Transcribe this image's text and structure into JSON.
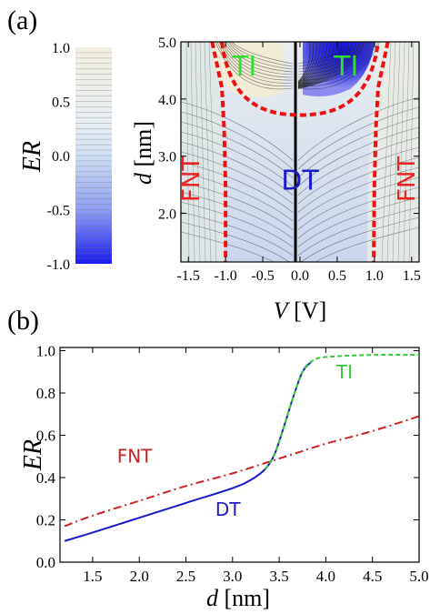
{
  "chart_data": [
    {
      "panel": "(a)",
      "type": "heatmap",
      "colorbar": {
        "label": "ER",
        "ticks": [
          "1.0",
          "0.5",
          "0.0",
          "-0.5",
          "-1.0"
        ],
        "range": [
          -1.0,
          1.0
        ],
        "colors": {
          "high": "#f3efdf",
          "mid": "#dfecf2",
          "low": "#2020ee"
        }
      },
      "xlabel": "V [V]",
      "ylabel": "d [nm]",
      "x_ticks": [
        "-1.5",
        "-1.0",
        "-0.5",
        "0.0",
        "0.5",
        "1.0",
        "1.5"
      ],
      "y_ticks": [
        "2.0",
        "3.0",
        "4.0",
        "5.0"
      ],
      "xlim": [
        -1.6,
        1.6
      ],
      "ylim": [
        1.15,
        5.0
      ],
      "regions": [
        {
          "label": "TI",
          "x": -0.75,
          "y": 4.55,
          "color": "#33dd33"
        },
        {
          "label": "TI",
          "x": 0.62,
          "y": 4.55,
          "color": "#33dd33"
        },
        {
          "label": "DT",
          "x": 0.0,
          "y": 2.55,
          "color": "#1a1acc"
        },
        {
          "label": "FNT",
          "x": -1.45,
          "y": 2.6,
          "color": "#ee2222",
          "rotated": true
        },
        {
          "label": "FNT",
          "x": 1.45,
          "y": 2.6,
          "color": "#ee2222",
          "rotated": true
        }
      ],
      "boundaries": {
        "color": "#ee1111",
        "dome": {
          "center_v": 0.0,
          "d_min": 3.72,
          "d_max": 5.0,
          "v_half_width": 1.05
        },
        "fnt_left": [
          [
            -1.18,
            5.0
          ],
          [
            -1.05,
            4.2
          ],
          [
            -1.02,
            3.5
          ],
          [
            -1.0,
            2.5
          ],
          [
            -1.0,
            1.15
          ]
        ],
        "fnt_right": [
          [
            1.18,
            5.0
          ],
          [
            1.05,
            4.2
          ],
          [
            1.02,
            3.5
          ],
          [
            1.0,
            2.5
          ],
          [
            0.99,
            1.15
          ]
        ]
      }
    },
    {
      "panel": "(b)",
      "type": "line",
      "xlabel": "d [nm]",
      "ylabel": "ER",
      "x_ticks": [
        "1.5",
        "2.0",
        "2.5",
        "3.0",
        "3.5",
        "4.0",
        "4.5",
        "5.0"
      ],
      "y_ticks": [
        "0.0",
        "0.2",
        "0.4",
        "0.6",
        "0.8",
        "1.0"
      ],
      "xlim": [
        1.15,
        5.0
      ],
      "ylim": [
        0.0,
        1.0
      ],
      "series": [
        {
          "name": "FNT",
          "color": "#cc2222",
          "dash": "dashdot",
          "x": [
            1.2,
            1.5,
            2.0,
            2.5,
            3.0,
            3.5,
            4.0,
            4.5,
            5.0
          ],
          "y": [
            0.17,
            0.22,
            0.29,
            0.36,
            0.42,
            0.49,
            0.56,
            0.62,
            0.69
          ]
        },
        {
          "name": "DT",
          "color": "#1a1acc",
          "dash": "solid",
          "x": [
            1.2,
            1.5,
            2.0,
            2.5,
            3.0,
            3.2,
            3.35,
            3.45,
            3.55,
            3.65,
            3.75,
            3.85
          ],
          "y": [
            0.1,
            0.14,
            0.21,
            0.28,
            0.35,
            0.39,
            0.44,
            0.51,
            0.64,
            0.78,
            0.9,
            0.95
          ]
        },
        {
          "name": "TI",
          "color": "#33cc33",
          "dash": "dashed",
          "x": [
            3.35,
            3.45,
            3.55,
            3.65,
            3.75,
            3.85,
            4.0,
            4.5,
            5.0
          ],
          "y": [
            0.44,
            0.51,
            0.64,
            0.78,
            0.9,
            0.95,
            0.97,
            0.98,
            0.98
          ]
        }
      ],
      "annotations": [
        {
          "text": "FNT",
          "x": 1.95,
          "y": 0.47,
          "color": "#cc2222"
        },
        {
          "text": "DT",
          "x": 2.95,
          "y": 0.22,
          "color": "#1a1acc"
        },
        {
          "text": "TI",
          "x": 4.2,
          "y": 0.87,
          "color": "#33cc33"
        }
      ]
    }
  ]
}
